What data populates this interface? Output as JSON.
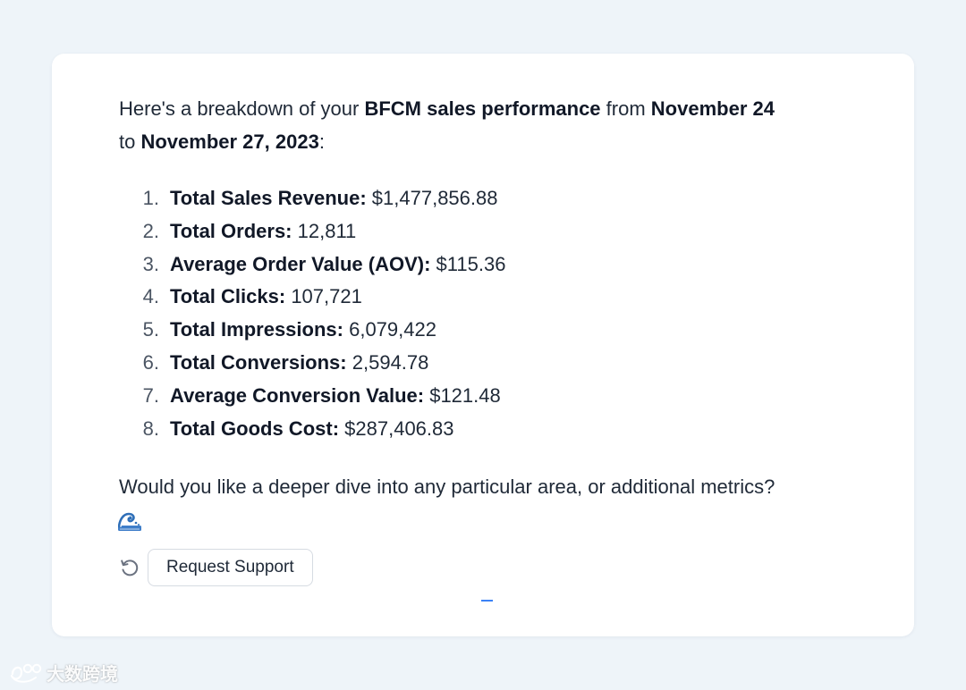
{
  "message": {
    "intro": {
      "part1": "Here's a breakdown of your ",
      "bold1": "BFCM sales performance",
      "part2": " from ",
      "bold2": "November 24",
      "part3": " to ",
      "bold3": "November 27, 2023",
      "part4": ":"
    },
    "metrics": [
      {
        "num": "1.",
        "name": "Total Sales Revenue:",
        "value": "$1,477,856.88"
      },
      {
        "num": "2.",
        "name": "Total Orders:",
        "value": "12,811"
      },
      {
        "num": "3.",
        "name": "Average Order Value (AOV):",
        "value": "$115.36"
      },
      {
        "num": "4.",
        "name": "Total Clicks:",
        "value": "107,721"
      },
      {
        "num": "5.",
        "name": "Total Impressions:",
        "value": "6,079,422"
      },
      {
        "num": "6.",
        "name": "Total Conversions:",
        "value": "2,594.78"
      },
      {
        "num": "7.",
        "name": "Average Conversion Value:",
        "value": "$121.48"
      },
      {
        "num": "8.",
        "name": "Total Goods Cost:",
        "value": "$287,406.83"
      }
    ],
    "closing": "Would you like a deeper dive into any particular area, or additional metrics?",
    "emoji_icon": "wave-emoji-icon"
  },
  "actions": {
    "retry_icon": "refresh-icon",
    "support_label": "Request Support"
  },
  "watermark": {
    "text": "大数跨境"
  },
  "colors": {
    "background": "#eef4f9",
    "card": "#ffffff",
    "text": "#1f2937",
    "accent": "#3b82f6"
  }
}
